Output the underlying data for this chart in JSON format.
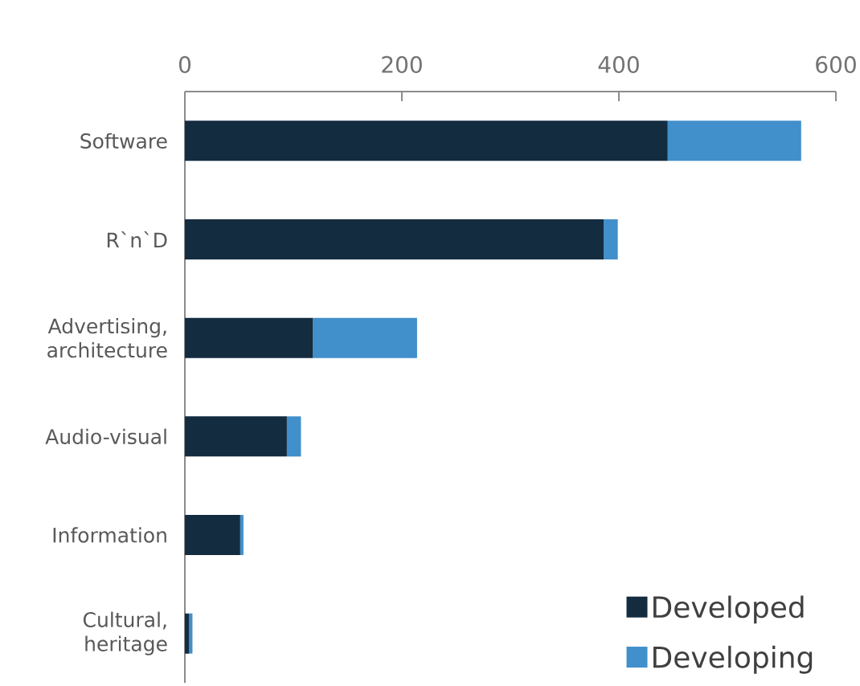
{
  "chart_data": {
    "type": "bar",
    "orientation": "horizontal",
    "stacked": true,
    "categories": [
      "Software",
      "R`n`D",
      "Advertising, architecture",
      "Audio-visual",
      "Information",
      "Cultural, heritage"
    ],
    "series": [
      {
        "name": "Developed",
        "color": "#142c40",
        "values": [
          445,
          386,
          118,
          94,
          51,
          4
        ]
      },
      {
        "name": "Developing",
        "color": "#418fcb",
        "values": [
          123,
          13,
          96,
          13,
          3,
          3
        ]
      }
    ],
    "xlim": [
      0,
      600
    ],
    "xticks": [
      0,
      200,
      400,
      600
    ],
    "legend": "bottom right"
  }
}
